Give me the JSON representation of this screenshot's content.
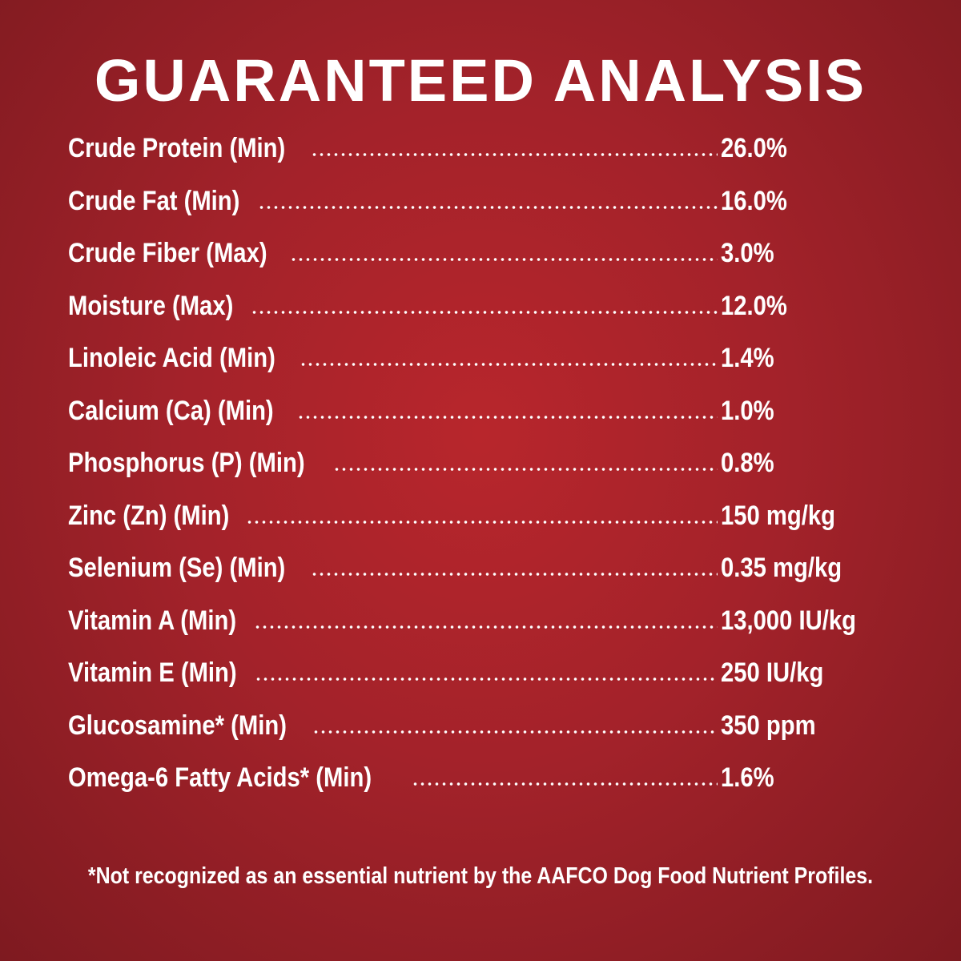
{
  "title": "GUARANTEED ANALYSIS",
  "rows": [
    {
      "label": "Crude Protein (Min)",
      "value": "26.0%"
    },
    {
      "label": "Crude Fat (Min)",
      "value": "16.0%"
    },
    {
      "label": "Crude Fiber (Max)",
      "value": "3.0%"
    },
    {
      "label": "Moisture (Max)",
      "value": "12.0%"
    },
    {
      "label": "Linoleic Acid (Min)",
      "value": "1.4%"
    },
    {
      "label": "Calcium (Ca) (Min)",
      "value": "1.0%"
    },
    {
      "label": "Phosphorus (P) (Min)",
      "value": "0.8%"
    },
    {
      "label": "Zinc (Zn) (Min)",
      "value": "150 mg/kg"
    },
    {
      "label": "Selenium (Se) (Min)",
      "value": "0.35 mg/kg"
    },
    {
      "label": "Vitamin A (Min)",
      "value": "13,000 IU/kg"
    },
    {
      "label": "Vitamin E (Min)",
      "value": "250 IU/kg"
    },
    {
      "label": "Glucosamine* (Min)",
      "value": "350 ppm"
    },
    {
      "label": "Omega-6 Fatty Acids* (Min)",
      "value": "1.6%"
    }
  ],
  "footnote": "*Not recognized as an essential nutrient by the AAFCO Dog Food Nutrient Profiles."
}
